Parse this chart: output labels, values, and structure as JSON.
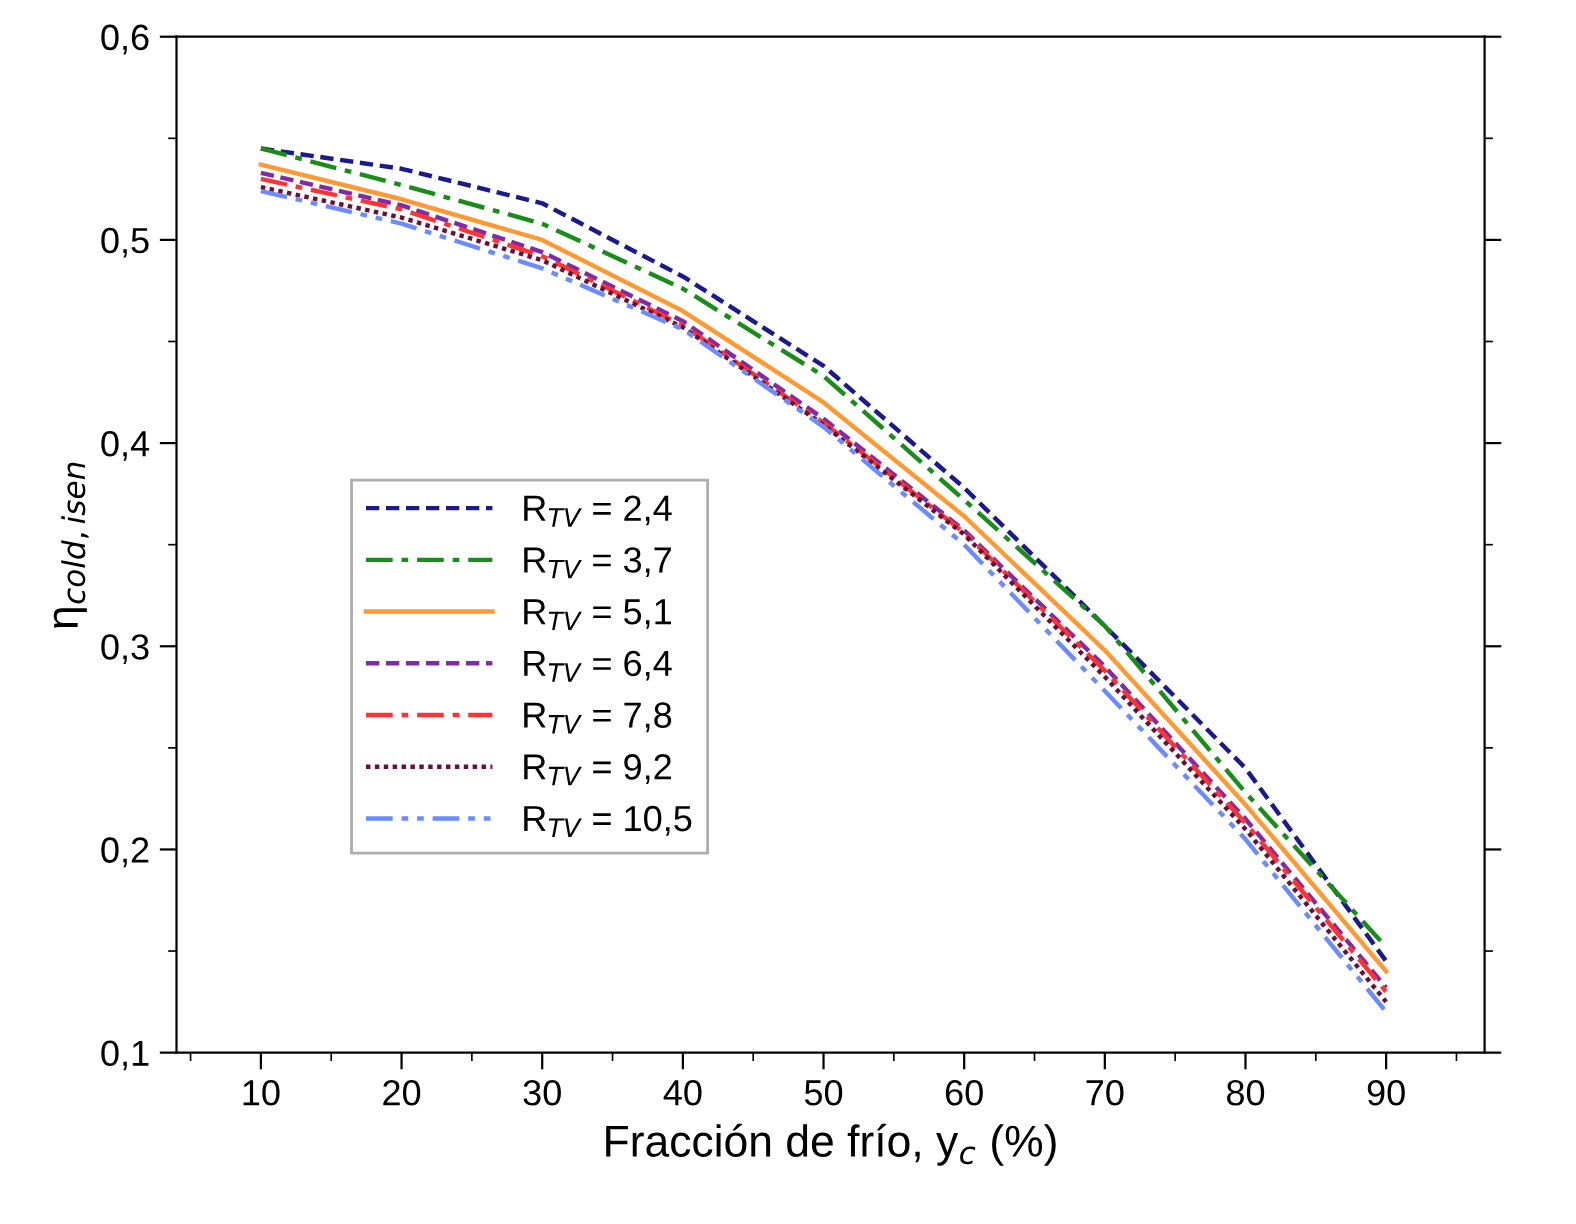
{
  "chart_data": {
    "type": "line",
    "xlabel": "Fracción de frío, y$_{c}$ (%)",
    "ylabel": "η$_{cold,isen}$",
    "x": [
      10,
      20,
      30,
      40,
      50,
      60,
      70,
      80,
      90
    ],
    "xlim": [
      4,
      97
    ],
    "xticks": [
      10,
      20,
      30,
      40,
      50,
      60,
      70,
      80,
      90
    ],
    "ylim": [
      0.1,
      0.6
    ],
    "yticks": [
      {
        "value": 0.1,
        "label": "0,1"
      },
      {
        "value": 0.2,
        "label": "0,2"
      },
      {
        "value": 0.3,
        "label": "0,3"
      },
      {
        "value": 0.4,
        "label": "0,4"
      },
      {
        "value": 0.5,
        "label": "0,5"
      },
      {
        "value": 0.6,
        "label": "0,6"
      }
    ],
    "grid": false,
    "legend": "left",
    "marker": "none",
    "series": [
      {
        "name": "R$_{TV}$ = 2,4",
        "color": "#1a1a8c",
        "line_style": "dashed",
        "values": [
          0.545,
          0.535,
          0.518,
          0.482,
          0.438,
          0.378,
          0.31,
          0.24,
          0.145
        ]
      },
      {
        "name": "R$_{TV}$ = 3,7",
        "color": "#1a8c1a",
        "line_style": "dashdot",
        "values": [
          0.545,
          0.527,
          0.508,
          0.476,
          0.433,
          0.372,
          0.31,
          0.228,
          0.152
        ]
      },
      {
        "name": "R$_{TV}$ = 5,1",
        "color": "#ff9933",
        "line_style": "solid",
        "values": [
          0.537,
          0.52,
          0.5,
          0.465,
          0.42,
          0.364,
          0.298,
          0.222,
          0.14
        ]
      },
      {
        "name": "R$_{TV}$ = 6,4",
        "color": "#7f2aa8",
        "line_style": "dashed",
        "values": [
          0.533,
          0.517,
          0.494,
          0.46,
          0.412,
          0.357,
          0.29,
          0.215,
          0.132
        ]
      },
      {
        "name": "R$_{TV}$ = 7,8",
        "color": "#ff3333",
        "line_style": "dashdot",
        "values": [
          0.53,
          0.515,
          0.492,
          0.458,
          0.41,
          0.356,
          0.288,
          0.213,
          0.13
        ]
      },
      {
        "name": "R$_{TV}$ = 9,2",
        "color": "#6b0f3a",
        "line_style": "dotted",
        "values": [
          0.526,
          0.511,
          0.49,
          0.457,
          0.409,
          0.355,
          0.285,
          0.21,
          0.125
        ]
      },
      {
        "name": "R$_{TV}$ = 10,5",
        "color": "#6b8cff",
        "line_style": "dashdotdot",
        "values": [
          0.524,
          0.508,
          0.486,
          0.456,
          0.408,
          0.35,
          0.278,
          0.205,
          0.12
        ]
      }
    ]
  }
}
